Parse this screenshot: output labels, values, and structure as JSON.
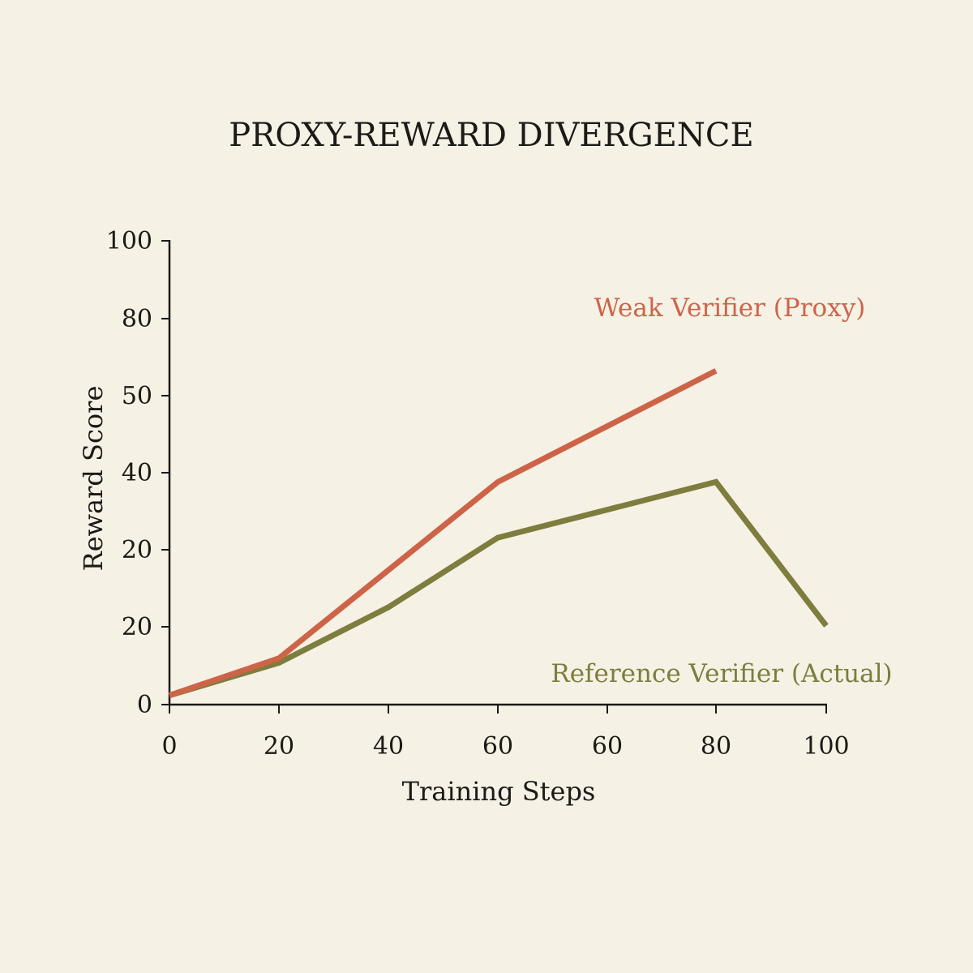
{
  "chart_data": {
    "type": "line",
    "title": "PROXY-REWARD DIVERGENCE",
    "xlabel": "Training Steps",
    "ylabel": "Reward Score",
    "x_tick_labels": [
      "0",
      "20",
      "40",
      "60",
      "60",
      "80",
      "100"
    ],
    "y_tick_labels": [
      "0",
      "20",
      "20",
      "40",
      "50",
      "80",
      "100"
    ],
    "grid": false,
    "legend": "inline labels near line ends",
    "series": [
      {
        "name": "Weak Verifier (Proxy)",
        "color": "#cd6448",
        "points": [
          {
            "x": 0,
            "y": 2
          },
          {
            "x": 20,
            "y": 10
          },
          {
            "x": 40,
            "y": 29
          },
          {
            "x": 60,
            "y": 48
          },
          {
            "x": 80,
            "y": 72
          }
        ]
      },
      {
        "name": "Reference Verifier (Actual)",
        "color": "#7d7d3e",
        "points": [
          {
            "x": 0,
            "y": 2
          },
          {
            "x": 20,
            "y": 9
          },
          {
            "x": 40,
            "y": 21
          },
          {
            "x": 60,
            "y": 36
          },
          {
            "x": 80,
            "y": 48
          },
          {
            "x": 100,
            "y": 17
          }
        ]
      }
    ]
  }
}
